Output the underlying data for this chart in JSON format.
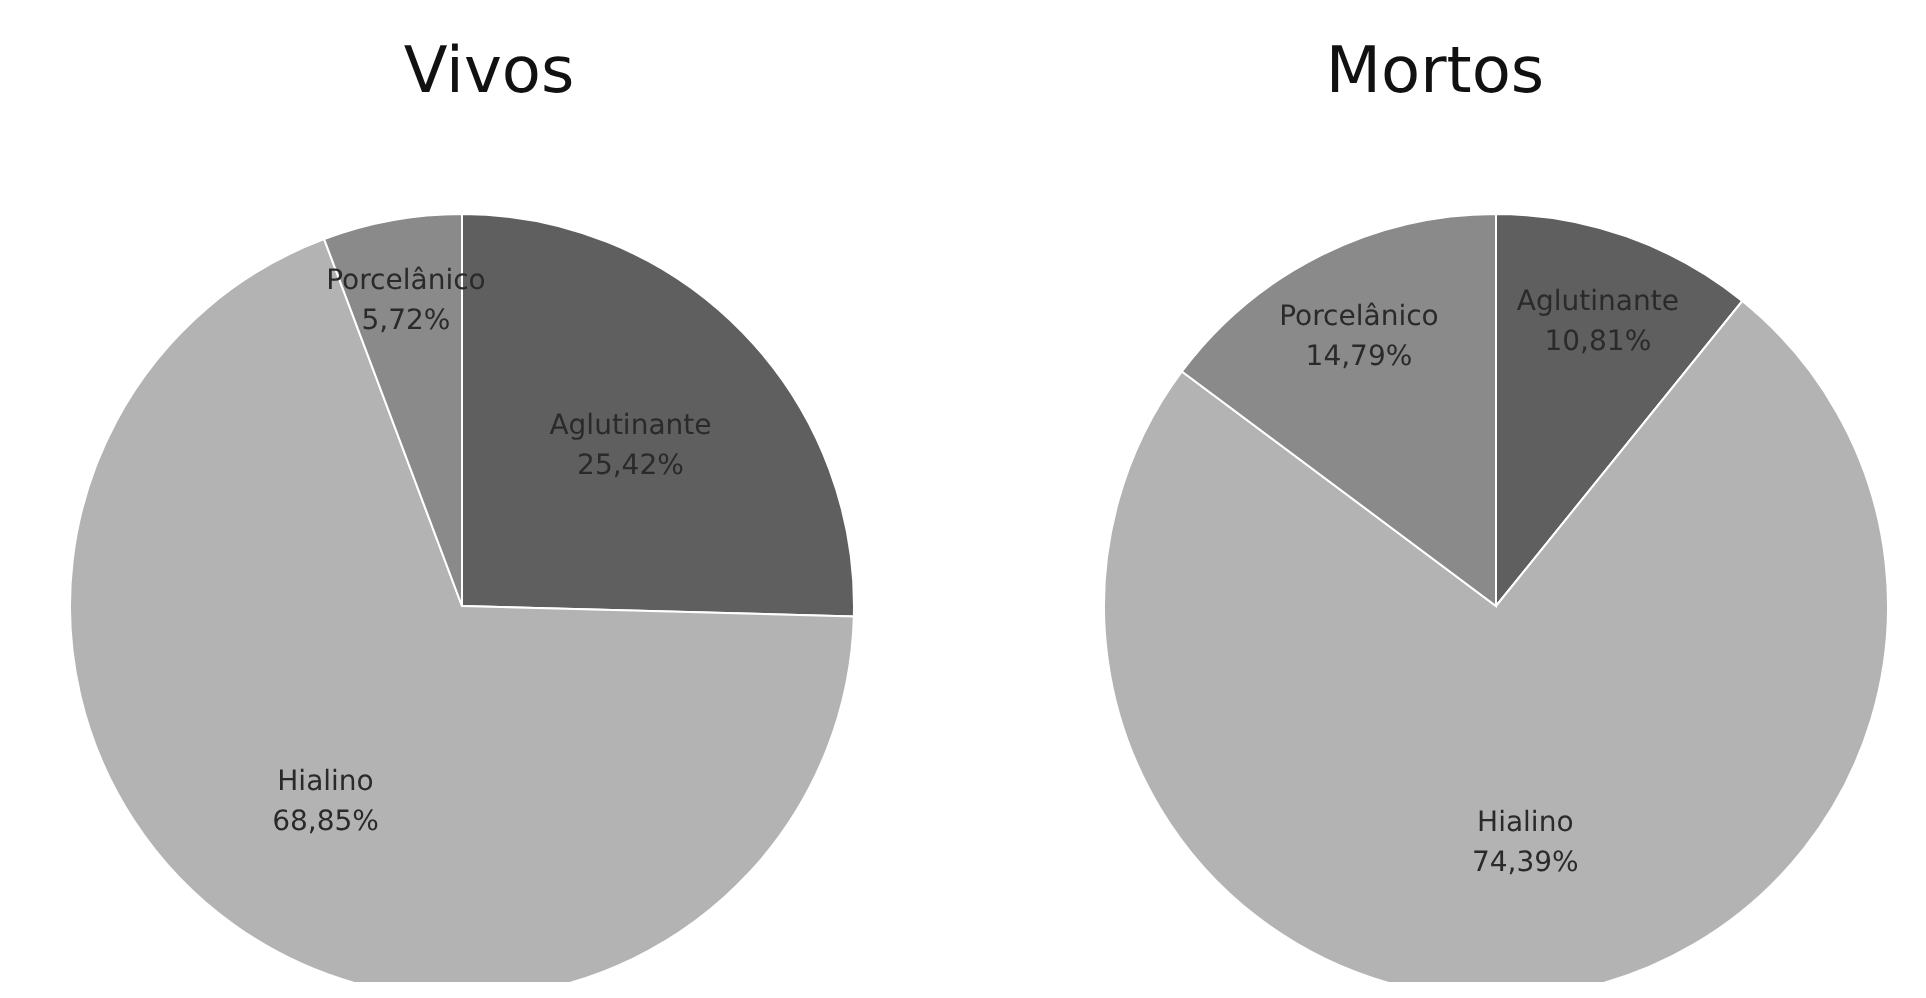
{
  "chart_data": [
    {
      "type": "pie",
      "title": "Vivos",
      "categories": [
        "Aglutinante",
        "Hialino",
        "Porcelânico"
      ],
      "values": [
        25.42,
        68.85,
        5.72
      ],
      "value_labels": [
        "25,42%",
        "68,85%",
        "5,72%"
      ],
      "colors": [
        "#5f5f5f",
        "#b3b3b3",
        "#8a8a8a"
      ],
      "legend": false
    },
    {
      "type": "pie",
      "title": "Mortos",
      "categories": [
        "Aglutinante",
        "Hialino",
        "Porcelânico"
      ],
      "values": [
        10.81,
        74.39,
        14.79
      ],
      "value_labels": [
        "10,81%",
        "74,39%",
        "14,79%"
      ],
      "colors": [
        "#5f5f5f",
        "#b3b3b3",
        "#8a8a8a"
      ],
      "legend": false
    }
  ]
}
